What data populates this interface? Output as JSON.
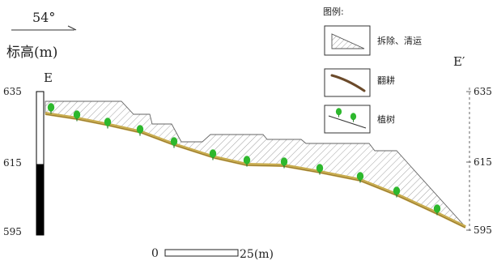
{
  "header": {
    "azimuth": "54°",
    "elevation_label": "标高(m)",
    "point_left": "E",
    "point_right": "E′"
  },
  "axis": {
    "ticks_left": [
      "635",
      "615",
      "595"
    ],
    "ticks_right": [
      "635",
      "615",
      "595"
    ]
  },
  "legend": {
    "title": "图例:",
    "items": [
      {
        "label": "拆除、清运",
        "icon": "hatched-triangle-icon"
      },
      {
        "label": "翻耕",
        "icon": "plow-line-icon"
      },
      {
        "label": "植树",
        "icon": "tree-slope-icon"
      }
    ]
  },
  "scale": {
    "start": "0",
    "end": "25(m)"
  },
  "colors": {
    "ground_line": "#c8ac4e",
    "tree_green": "#2db82d",
    "hatch": "#777777",
    "plow_line": "#6b4a2a",
    "scale_black": "#000000"
  }
}
